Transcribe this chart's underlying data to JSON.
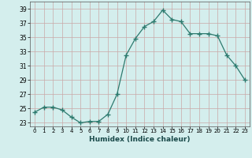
{
  "hours": [
    0,
    1,
    2,
    3,
    4,
    5,
    6,
    7,
    8,
    9,
    10,
    11,
    12,
    13,
    14,
    15,
    16,
    17,
    18,
    19,
    20,
    21,
    22,
    23
  ],
  "values": [
    24.5,
    25.2,
    25.2,
    24.8,
    23.8,
    23.0,
    23.2,
    23.2,
    24.2,
    27.0,
    32.5,
    34.8,
    36.5,
    37.2,
    38.8,
    37.5,
    37.2,
    35.5,
    35.5,
    35.5,
    35.2,
    32.5,
    31.0,
    29.0
  ],
  "line_color": "#2d7a6e",
  "marker": "+",
  "marker_size": 4,
  "bg_color": "#d4eeed",
  "grid_color_major": "#c9a8a8",
  "grid_color_minor": "#c9a8a8",
  "xlabel": "Humidex (Indice chaleur)",
  "xlim": [
    -0.5,
    23.5
  ],
  "ylim": [
    22.5,
    40
  ],
  "yticks": [
    23,
    25,
    27,
    29,
    31,
    33,
    35,
    37,
    39
  ],
  "xtick_labels": [
    "0",
    "1",
    "2",
    "3",
    "4",
    "5",
    "6",
    "7",
    "8",
    "9",
    "10",
    "11",
    "12",
    "13",
    "14",
    "15",
    "16",
    "17",
    "18",
    "19",
    "20",
    "21",
    "22",
    "23"
  ]
}
